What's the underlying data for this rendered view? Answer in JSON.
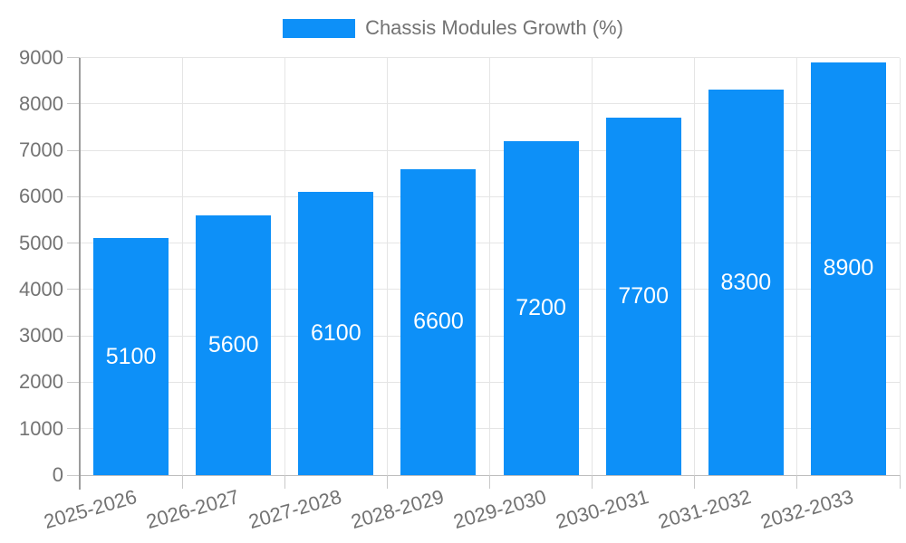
{
  "chart_data": {
    "type": "bar",
    "title": "Chassis Modules Growth (%)",
    "categories": [
      "2025-2026",
      "2026-2027",
      "2027-2028",
      "2028-2029",
      "2029-2030",
      "2030-2031",
      "2031-2032",
      "2032-2033"
    ],
    "values": [
      5100,
      5600,
      6100,
      6600,
      7200,
      7700,
      8300,
      8900
    ],
    "value_labels": [
      "5100",
      "5600",
      "6100",
      "6600",
      "7200",
      "7700",
      "8300",
      "8900"
    ],
    "ylim": [
      0,
      9000
    ],
    "y_ticks": [
      0,
      1000,
      2000,
      3000,
      4000,
      5000,
      6000,
      7000,
      8000,
      9000
    ],
    "grid": true,
    "legend_position": "top-center",
    "x_label_rotation_deg": -16,
    "colors": {
      "bar": "#0D90F8",
      "value_label": "#FFFFFF",
      "axis_text": "#737373",
      "gridline": "#E5E5E5",
      "axis_line": "#9C9C9C",
      "baseline": "#BDBDBD",
      "tick": "#C9C9C9",
      "background": "#FFFFFF"
    }
  }
}
